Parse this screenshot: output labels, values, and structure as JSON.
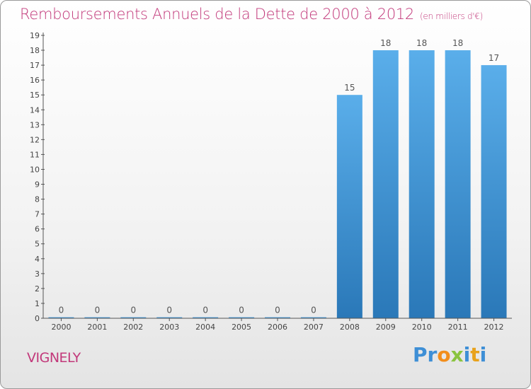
{
  "header": {
    "title": "Remboursements Annuels de la Dette de 2000 à 2012",
    "unit": "(en milliers d'€)"
  },
  "footer": {
    "commune": "VIGNELY",
    "brand_letters": [
      {
        "char": "P",
        "color": "#3e8fd6"
      },
      {
        "char": "r",
        "color": "#3e8fd6"
      },
      {
        "char": "o",
        "color": "#f28e1c"
      },
      {
        "char": "x",
        "color": "#8ac43f"
      },
      {
        "char": "i",
        "color": "#3e8fd6"
      },
      {
        "char": "t",
        "color": "#e8a21c"
      },
      {
        "char": "i",
        "color": "#3e8fd6"
      }
    ]
  },
  "colors": {
    "title": "#c2387a",
    "bar_light": "#5aaeea",
    "bar_dark": "#2a78b8",
    "axis": "#555555"
  },
  "chart_data": {
    "type": "bar",
    "title": "Remboursements Annuels de la Dette de 2000 à 2012",
    "subtitle": "(en milliers d'€)",
    "categories": [
      "2000",
      "2001",
      "2002",
      "2003",
      "2004",
      "2005",
      "2006",
      "2007",
      "2008",
      "2009",
      "2010",
      "2011",
      "2012"
    ],
    "values": [
      0,
      0,
      0,
      0,
      0,
      0,
      0,
      0,
      15,
      18,
      18,
      18,
      17
    ],
    "value_labels": [
      "0",
      "0",
      "0",
      "0",
      "0",
      "0",
      "0",
      "0",
      "15",
      "18",
      "18",
      "18",
      "17"
    ],
    "y_ticks": [
      "0",
      "1",
      "2",
      "3",
      "4",
      "5",
      "6",
      "7",
      "8",
      "9",
      "10",
      "11",
      "12",
      "13",
      "14",
      "15",
      "16",
      "17",
      "18",
      "19"
    ],
    "ylim": [
      0,
      19
    ],
    "grid": false
  }
}
